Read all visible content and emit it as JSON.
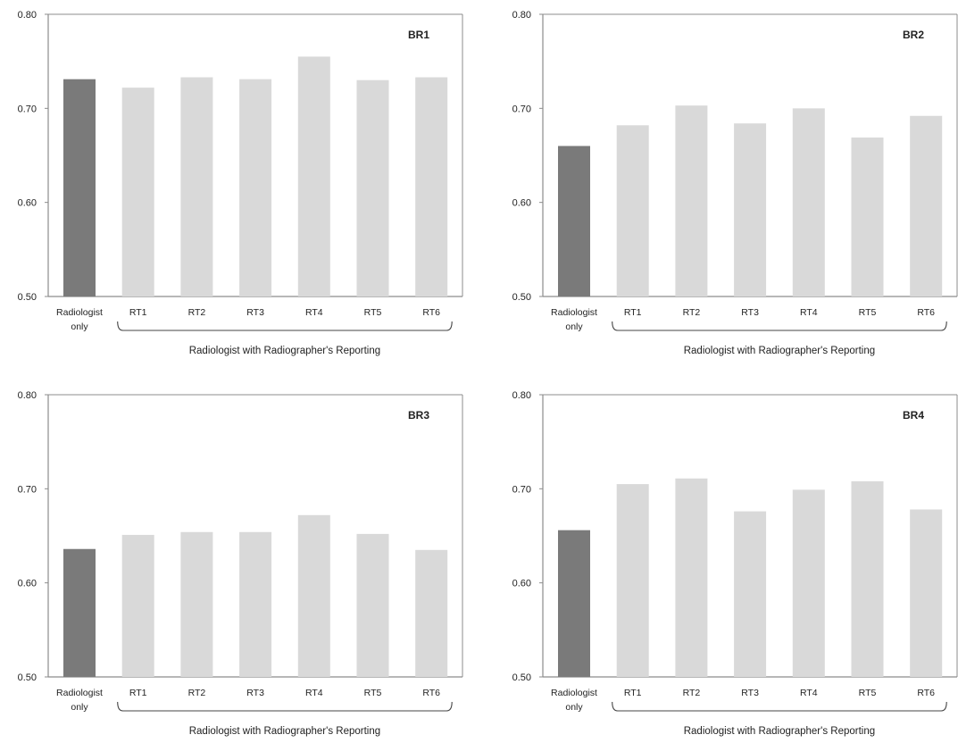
{
  "colors": {
    "radiologist_bar": "#7a7a7a",
    "rt_bar": "#d9d9d9",
    "axis": "#8c8c8c",
    "text": "#222222"
  },
  "chart_data": [
    {
      "type": "bar",
      "title": "BR1",
      "categories": [
        "Radiologist only",
        "RT1",
        "RT2",
        "RT3",
        "RT4",
        "RT5",
        "RT6"
      ],
      "values": [
        0.731,
        0.722,
        0.733,
        0.731,
        0.755,
        0.73,
        0.733
      ],
      "xlabel": "Radiologist  with Radiographer's Reporting",
      "ylim": [
        0.5,
        0.8
      ],
      "yticks": [
        "0.50",
        "0.60",
        "0.70",
        "0.80"
      ],
      "grid": false
    },
    {
      "type": "bar",
      "title": "BR2",
      "categories": [
        "Radiologist only",
        "RT1",
        "RT2",
        "RT3",
        "RT4",
        "RT5",
        "RT6"
      ],
      "values": [
        0.66,
        0.682,
        0.703,
        0.684,
        0.7,
        0.669,
        0.692
      ],
      "xlabel": "Radiologist  with Radiographer's Reporting",
      "ylim": [
        0.5,
        0.8
      ],
      "yticks": [
        "0.50",
        "0.60",
        "0.70",
        "0.80"
      ],
      "grid": false
    },
    {
      "type": "bar",
      "title": "BR3",
      "categories": [
        "Radiologist only",
        "RT1",
        "RT2",
        "RT3",
        "RT4",
        "RT5",
        "RT6"
      ],
      "values": [
        0.636,
        0.651,
        0.654,
        0.654,
        0.672,
        0.652,
        0.635
      ],
      "xlabel": "Radiologist  with Radiographer's Reporting",
      "ylim": [
        0.5,
        0.8
      ],
      "yticks": [
        "0.50",
        "0.60",
        "0.70",
        "0.80"
      ],
      "grid": false
    },
    {
      "type": "bar",
      "title": "BR4",
      "categories": [
        "Radiologist only",
        "RT1",
        "RT2",
        "RT3",
        "RT4",
        "RT5",
        "RT6"
      ],
      "values": [
        0.656,
        0.705,
        0.711,
        0.676,
        0.699,
        0.708,
        0.678
      ],
      "xlabel": "Radiologist  with Radiographer's Reporting",
      "ylim": [
        0.5,
        0.8
      ],
      "yticks": [
        "0.50",
        "0.60",
        "0.70",
        "0.80"
      ],
      "grid": false
    }
  ]
}
